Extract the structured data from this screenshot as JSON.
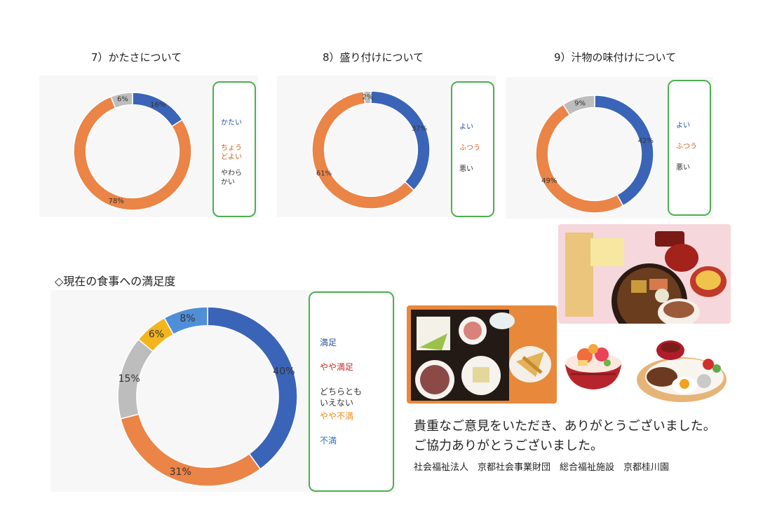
{
  "titles": {
    "c7": "7）かたさについて",
    "c8": "8）盛り付けについて",
    "c9": "9）汁物の味付けについて",
    "overall": "◇現在の食事への満足度"
  },
  "chart_data": [
    {
      "type": "pie",
      "donut": true,
      "title": "7）かたさについて",
      "categories": [
        "かたい",
        "ちょうどよい",
        "やわらかい"
      ],
      "legend_labels": [
        "かたい",
        "ちょう\nどよい",
        "やわら\nかい"
      ],
      "values": [
        16,
        78,
        6
      ],
      "data_labels": [
        "16%",
        "78%",
        "6%"
      ],
      "colors": [
        "#3a64b8",
        "#ea8447",
        "#bdbdbd"
      ],
      "label_colors": [
        "#2a4f9e",
        "#d9591b",
        "#333333"
      ],
      "legend_position": "right"
    },
    {
      "type": "pie",
      "donut": true,
      "title": "8）盛り付けについて",
      "categories": [
        "よい",
        "ふつう",
        "悪い"
      ],
      "legend_labels": [
        "よい",
        "ふつう",
        "悪い"
      ],
      "values": [
        37,
        61,
        2
      ],
      "data_labels": [
        "37%",
        "61%",
        "2%"
      ],
      "colors": [
        "#3a64b8",
        "#ea8447",
        "#bdbdbd"
      ],
      "label_colors": [
        "#2a4f9e",
        "#d9591b",
        "#333333"
      ],
      "legend_position": "right"
    },
    {
      "type": "pie",
      "donut": true,
      "title": "9）汁物の味付けについて",
      "categories": [
        "よい",
        "ふつう",
        "悪い"
      ],
      "legend_labels": [
        "よい",
        "ふつう",
        "悪い"
      ],
      "values": [
        42,
        49,
        9
      ],
      "data_labels": [
        "42%",
        "49%",
        "9%"
      ],
      "colors": [
        "#3a64b8",
        "#ea8447",
        "#bdbdbd"
      ],
      "label_colors": [
        "#2a4f9e",
        "#d9591b",
        "#333333"
      ],
      "legend_position": "right"
    },
    {
      "type": "pie",
      "donut": true,
      "title": "◇現在の食事への満足度",
      "categories": [
        "満足",
        "やや満足",
        "どちらともいえない",
        "やや不満",
        "不満"
      ],
      "legend_labels": [
        "満足",
        "やや満足",
        "どちらとも\nいえない",
        "やや不満",
        "不満"
      ],
      "values": [
        40,
        31,
        15,
        6,
        8
      ],
      "data_labels": [
        "40%",
        "31%",
        "15%",
        "6%",
        "8%"
      ],
      "colors": [
        "#3a64b8",
        "#ea8447",
        "#bdbdbd",
        "#f2b51c",
        "#4f8fd8"
      ],
      "label_colors": [
        "#2a4f9e",
        "#c62828",
        "#333333",
        "#ef8a1a",
        "#2f6fb8"
      ],
      "legend_position": "right"
    }
  ],
  "message": {
    "line1": "貴重なご意見をいただき、ありがとうございました。",
    "line2": "ご協力ありがとうございました。",
    "org": "社会福祉法人　京都社会事業財団　総合福祉施設　京都桂川園"
  },
  "photos": [
    "washoku-tray-photo",
    "festive-meal-photo",
    "kaisendon-illustration",
    "hamburg-plate-illustration"
  ]
}
